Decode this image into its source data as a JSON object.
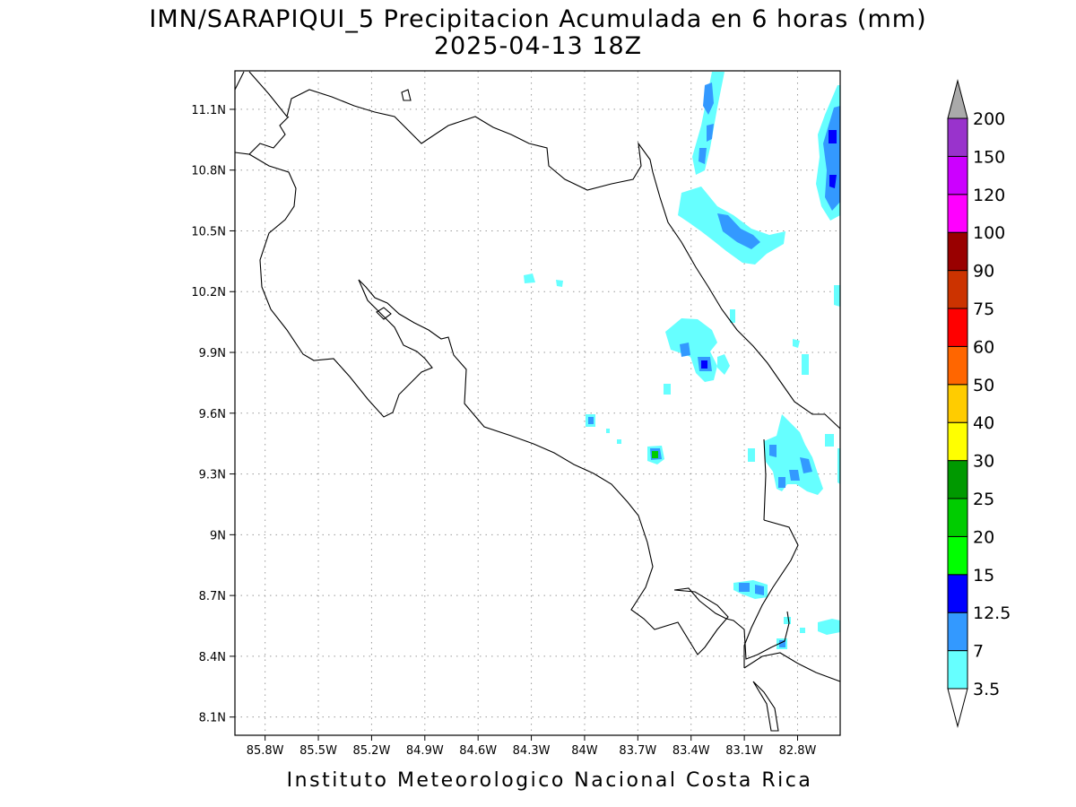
{
  "title": {
    "line1": "IMN/SARAPIQUI_5 Precipitacion Acumulada en 6 horas (mm)",
    "line2": "2025-04-13 18Z"
  },
  "axes": {
    "lon_ticks": [
      "85.8W",
      "85.5W",
      "85.2W",
      "84.9W",
      "84.6W",
      "84.3W",
      "84W",
      "83.7W",
      "83.4W",
      "83.1W",
      "82.8W"
    ],
    "lat_ticks": [
      "11.1N",
      "10.8N",
      "10.5N",
      "10.2N",
      "9.9N",
      "9.6N",
      "9.3N",
      "9N",
      "8.7N",
      "8.4N",
      "8.1N"
    ],
    "lon_values": [
      -85.8,
      -85.5,
      -85.2,
      -84.9,
      -84.6,
      -84.3,
      -84.0,
      -83.7,
      -83.4,
      -83.1,
      -82.8
    ],
    "lat_values": [
      11.1,
      10.8,
      10.5,
      10.2,
      9.9,
      9.6,
      9.3,
      9.0,
      8.7,
      8.4,
      8.1
    ],
    "lon_range": [
      -85.97,
      -82.56
    ],
    "lat_range": [
      8.01,
      11.29
    ],
    "grid": true
  },
  "colorbar": {
    "levels": [
      "3.5",
      "7",
      "12.5",
      "15",
      "20",
      "25",
      "30",
      "40",
      "50",
      "60",
      "75",
      "90",
      "100",
      "120",
      "150",
      "200"
    ],
    "colors": [
      "#66ffff",
      "#3399ff",
      "#0000ff",
      "#00ff00",
      "#00cc00",
      "#009900",
      "#ffff00",
      "#ffcc00",
      "#ff6600",
      "#ff0000",
      "#cc3300",
      "#990000",
      "#ff00ff",
      "#cc00ff",
      "#9933cc",
      "#f0f0f0",
      "#aaaaaa"
    ]
  },
  "precip_cells": [
    {
      "lon": -83.37,
      "lat": 11.05,
      "level": 1
    },
    {
      "lon": -83.22,
      "lat": 10.58,
      "level": 1
    },
    {
      "lon": -83.06,
      "lat": 10.47,
      "level": 1
    },
    {
      "lon": -82.6,
      "lat": 10.95,
      "level": 2
    },
    {
      "lon": -82.62,
      "lat": 10.75,
      "level": 2
    },
    {
      "lon": -83.45,
      "lat": 9.88,
      "level": 1
    },
    {
      "lon": -83.34,
      "lat": 9.83,
      "level": 2
    },
    {
      "lon": -83.58,
      "lat": 9.39,
      "level": 3
    },
    {
      "lon": -83.93,
      "lat": 9.56,
      "level": 2
    },
    {
      "lon": -82.85,
      "lat": 9.42,
      "level": 1
    },
    {
      "lon": -82.72,
      "lat": 9.34,
      "level": 1
    },
    {
      "lon": -82.95,
      "lat": 8.73,
      "level": 1
    },
    {
      "lon": -82.84,
      "lat": 8.45,
      "level": 1
    }
  ],
  "footer": "Instituto Meteorologico Nacional Costa Rica"
}
